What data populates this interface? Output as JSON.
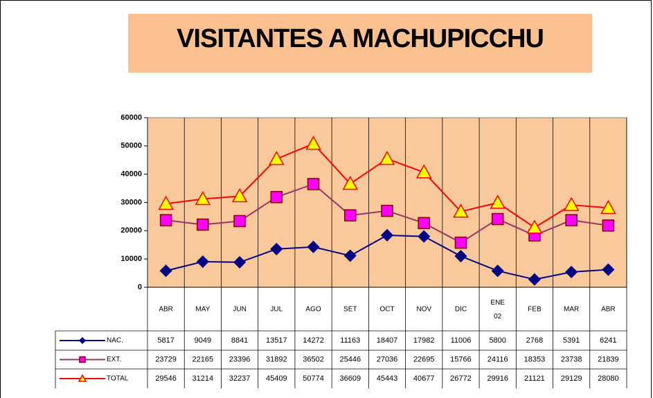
{
  "chart_data": {
    "type": "line",
    "title": "VISITANTES A MACHUPICCHU",
    "categories": [
      "ABR",
      "MAY",
      "JUN",
      "JUL",
      "AGO",
      "SET",
      "OCT",
      "NOV",
      "DIC",
      "ENE 02",
      "FEB",
      "MAR",
      "ABR"
    ],
    "series": [
      {
        "name": "NAC.",
        "color": "#000080",
        "marker": "diamond",
        "marker_fill": "#000080",
        "values": [
          5817,
          9049,
          8841,
          13517,
          14272,
          11163,
          18407,
          17982,
          11006,
          5800,
          2768,
          5391,
          6241
        ]
      },
      {
        "name": "EXT.",
        "color": "#993366",
        "marker": "square",
        "marker_fill": "#ff00ff",
        "values": [
          23729,
          22165,
          23396,
          31892,
          36502,
          25446,
          27036,
          22695,
          15766,
          24116,
          18353,
          23738,
          21839
        ]
      },
      {
        "name": "TOTAL",
        "color": "#ff0000",
        "marker": "triangle",
        "marker_fill": "#ffff00",
        "values": [
          29546,
          31214,
          32237,
          45409,
          50774,
          36609,
          45443,
          40677,
          26772,
          29916,
          21121,
          29129,
          28080
        ]
      }
    ],
    "ylim": [
      0,
      60000
    ],
    "yticks": [
      0,
      10000,
      20000,
      30000,
      40000,
      50000,
      60000
    ]
  }
}
